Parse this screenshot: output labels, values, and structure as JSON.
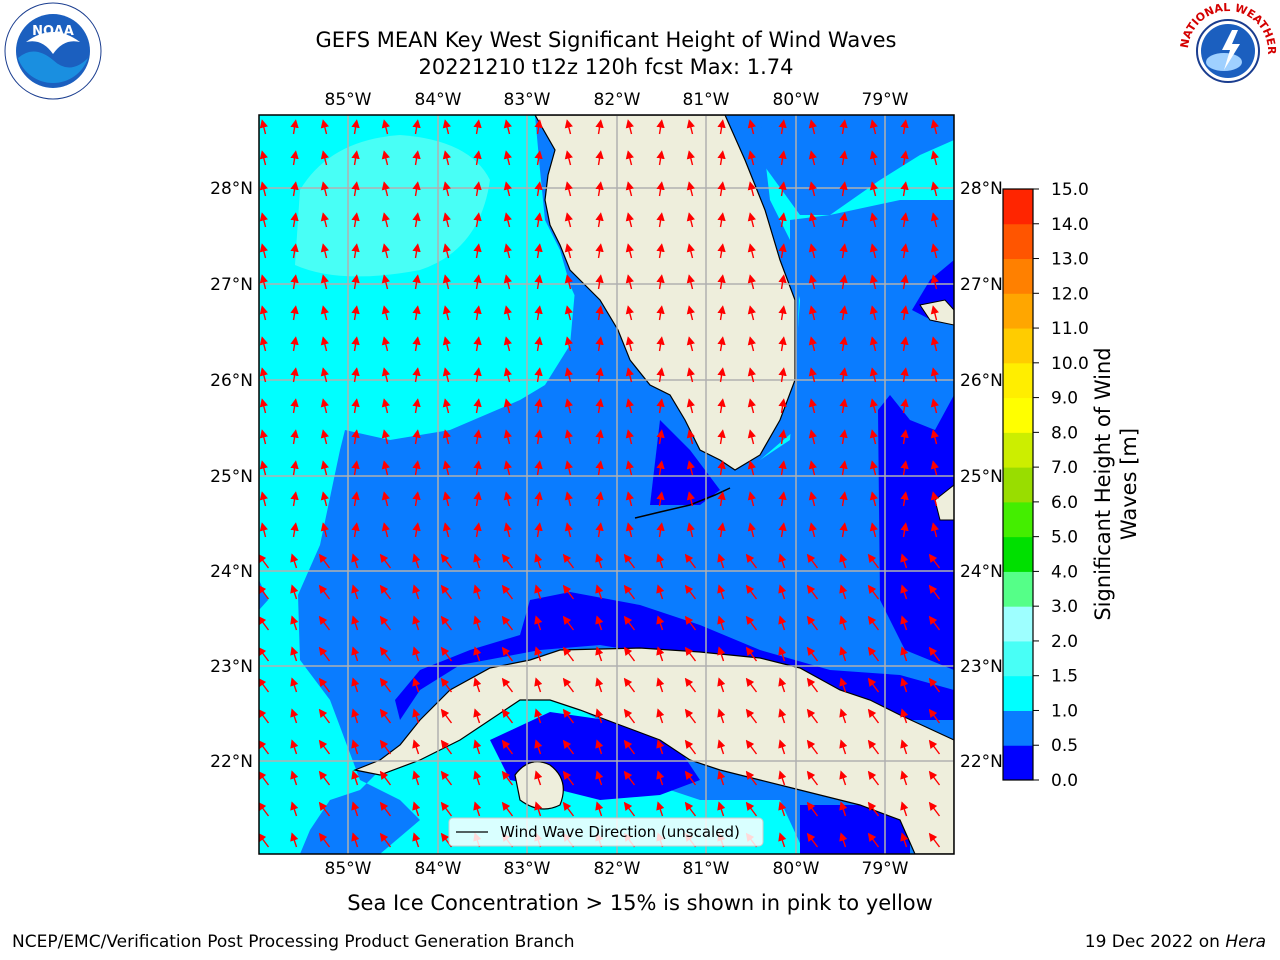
{
  "title": {
    "line1": "GEFS MEAN Key West Significant Height of Wind Waves",
    "line2": "20221210 t12z 120h fcst   Max: 1.74"
  },
  "map": {
    "lon_ticks": [
      "85°W",
      "84°W",
      "83°W",
      "82°W",
      "81°W",
      "80°W",
      "79°W"
    ],
    "lat_ticks": [
      "28°N",
      "27°N",
      "26°N",
      "25°N",
      "24°N",
      "23°N",
      "22°N"
    ],
    "legend_label": "Wind Wave Direction (unscaled)",
    "arrow_color": "#ff0000",
    "land_color": "#eeeedc",
    "grid_color": "#b0b0b0"
  },
  "colorbar": {
    "label": "Significant Height of Wind Waves [m]",
    "ticks": [
      "0.0",
      "0.5",
      "1.0",
      "1.5",
      "2.0",
      "3.0",
      "4.0",
      "5.0",
      "6.0",
      "7.0",
      "8.0",
      "9.0",
      "10.0",
      "11.0",
      "12.0",
      "13.0",
      "14.0",
      "15.0"
    ],
    "colors": [
      "#0000ff",
      "#0a7cff",
      "#00ffff",
      "#48fff6",
      "#9effff",
      "#55ff88",
      "#00e000",
      "#44ee00",
      "#99dd00",
      "#ccee00",
      "#ffff00",
      "#ffee00",
      "#ffcc00",
      "#ffa600",
      "#ff8000",
      "#ff5500",
      "#ff2500"
    ]
  },
  "footer": {
    "note": "Sea Ice Concentration > 15% is shown in pink to yellow",
    "left": "NCEP/EMC/Verification Post Processing Product Generation Branch",
    "right_date": "19 Dec 2022 on ",
    "right_machine": "Hera"
  },
  "logos": {
    "noaa": "NOAA",
    "nws": "NATIONAL WEATHER SERVICE"
  }
}
